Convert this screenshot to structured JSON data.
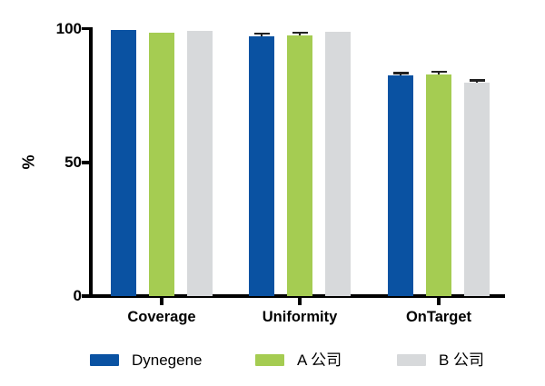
{
  "figure": {
    "background": "#ffffff",
    "axis_color": "#000000",
    "error_bar_color": "#222222"
  },
  "chart_data": {
    "type": "bar",
    "title": "",
    "categories": [
      "Coverage",
      "Uniformity",
      "OnTarget"
    ],
    "series": [
      {
        "name": "Dynegene",
        "color": "#0A52A2",
        "values": [
          99.6,
          97.0,
          82.5
        ],
        "errors_upper": [
          0,
          1.2,
          1.0
        ]
      },
      {
        "name": "A 公司",
        "color": "#A5CC52",
        "values": [
          98.6,
          97.5,
          83.0
        ],
        "errors_upper": [
          0,
          1.0,
          1.0
        ]
      },
      {
        "name": "B 公司",
        "color": "#D7D9DB",
        "values": [
          99.1,
          98.9,
          79.8
        ],
        "errors_upper": [
          0,
          0,
          1.0
        ]
      }
    ],
    "xlabel": "",
    "ylabel": "%",
    "yticks": [
      0,
      50,
      100
    ],
    "ylim": [
      0,
      100
    ],
    "grid": false,
    "legend_position": "bottom"
  }
}
